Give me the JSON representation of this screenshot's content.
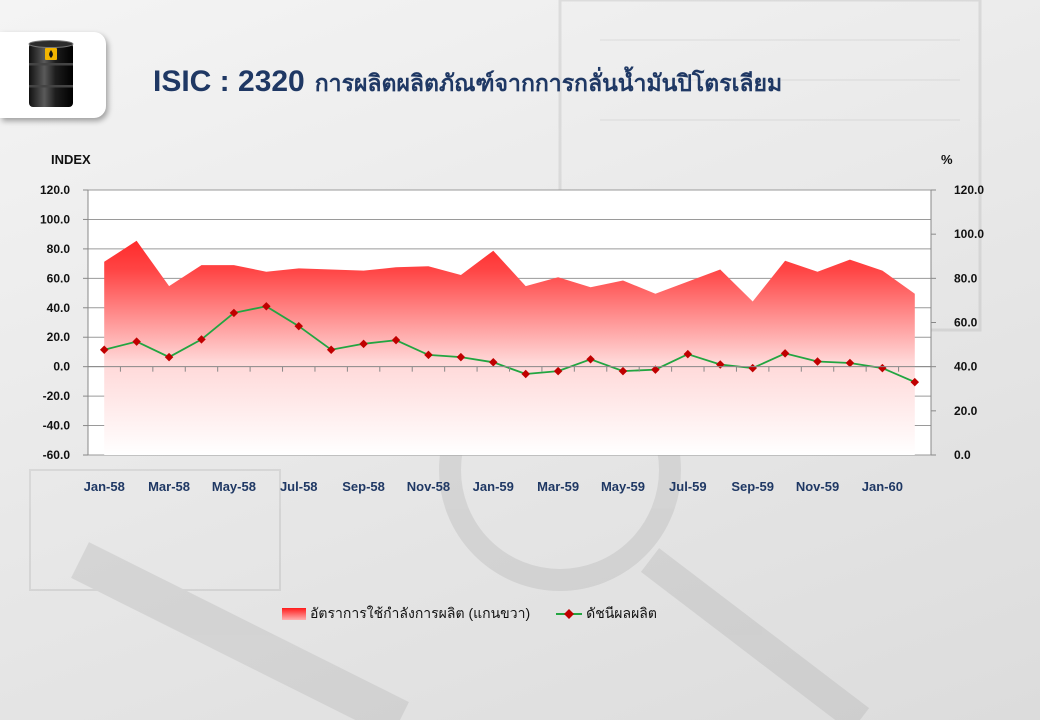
{
  "header": {
    "code": "ISIC : 2320",
    "title_th": "การผลิตผลิตภัณฑ์จากการกลั่นน้ำมันปิโตรเลียม",
    "logo_icon": "oil-barrel-icon"
  },
  "chart_data": {
    "type": "line",
    "left_axis_label": "INDEX",
    "right_axis_label": "%",
    "left_ylim": [
      -60,
      120
    ],
    "left_ticks": [
      "120.0",
      "100.0",
      "80.0",
      "60.0",
      "40.0",
      "20.0",
      "0.0",
      "-20.0",
      "-40.0",
      "-60.0"
    ],
    "right_ylim": [
      0,
      120
    ],
    "right_ticks": [
      "120.0",
      "100.0",
      "80.0",
      "60.0",
      "40.0",
      "20.0",
      "0.0"
    ],
    "x_tick_labels": [
      "Jan-58",
      "Mar-58",
      "May-58",
      "Jul-58",
      "Sep-58",
      "Nov-58",
      "Jan-59",
      "Mar-59",
      "May-59",
      "Jul-59",
      "Sep-59",
      "Nov-59",
      "Jan-60"
    ],
    "categories": [
      "Jan-58",
      "Feb-58",
      "Mar-58",
      "Apr-58",
      "May-58",
      "Jun-58",
      "Jul-58",
      "Aug-58",
      "Sep-58",
      "Oct-58",
      "Nov-58",
      "Dec-58",
      "Jan-59",
      "Feb-59",
      "Mar-59",
      "Apr-59",
      "May-59",
      "Jun-59",
      "Jul-59",
      "Aug-59",
      "Sep-59",
      "Oct-59",
      "Nov-59",
      "Dec-59",
      "Jan-60",
      "Feb-60"
    ],
    "grid": true,
    "legend_position": "bottom",
    "series": [
      {
        "name": "อัตราการใช้กำลังการผลิต (แกนขวา)",
        "kind": "area",
        "axis": "right",
        "color": "#ff1a1a",
        "values": [
          87.5,
          97,
          76.5,
          86,
          86,
          83,
          84.5,
          84,
          83.5,
          85,
          85.5,
          81.5,
          92.5,
          76.5,
          80.5,
          76,
          79,
          73,
          78.5,
          84,
          69.5,
          88,
          83,
          88.5,
          83.5,
          73
        ]
      },
      {
        "name": "ดัชนีผลผลิต",
        "kind": "line",
        "axis": "left",
        "color": "#22a541",
        "marker_color": "#c00000",
        "values": [
          11.5,
          17,
          6.5,
          18.5,
          36.5,
          41,
          27.5,
          11.5,
          15.5,
          18,
          8,
          6.5,
          3,
          -5,
          -3,
          5,
          -3,
          -2,
          8.5,
          1.5,
          -1,
          9,
          3.5,
          2.5,
          -1,
          -10.5
        ]
      }
    ]
  }
}
